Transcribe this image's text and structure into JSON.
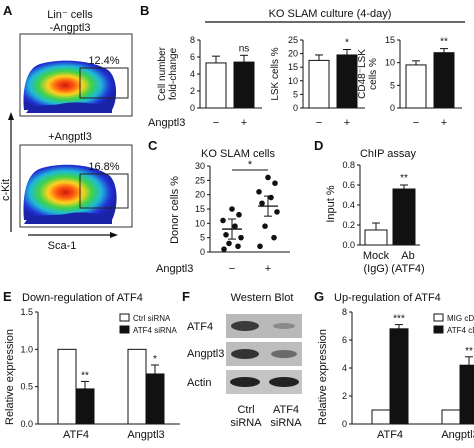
{
  "panel_letters": {
    "a": "A",
    "b": "B",
    "c": "C",
    "d": "D",
    "e": "E",
    "f": "F",
    "g": "G"
  },
  "colors": {
    "black_bar": "#111111",
    "white_bar": "#ffffff",
    "flow_outer": "#2233d6",
    "flow_mid": "#22c05a",
    "flow_inner": "#ffd21f",
    "flow_core": "#e8241a"
  },
  "panel_a": {
    "top_title_line1": "Lin⁻ cells",
    "top_title_line2": "-Angptl3",
    "top_percent": "12.4%",
    "bottom_title": "+Angptl3",
    "bottom_percent": "16.8%",
    "y_axis": "c-Kit",
    "x_axis": "Sca-1"
  },
  "panel_b": {
    "header": "KO SLAM culture (4-day)",
    "row_label": "Angptl3",
    "cond_minus": "−",
    "cond_plus": "+",
    "charts": [
      {
        "ylabel_line1": "Cell number",
        "ylabel_line2": "fold-change",
        "ticks": [
          "0",
          "2",
          "4",
          "6",
          "8"
        ],
        "significance": "ns"
      },
      {
        "ylabel_line1": "LSK cells %",
        "ticks": [
          "0",
          "5",
          "10",
          "15",
          "20",
          "25"
        ],
        "significance": "*"
      },
      {
        "ylabel_line1": "CD48⁻LSK",
        "ylabel_line2": "cells %",
        "ticks": [
          "0",
          "5",
          "10",
          "15"
        ],
        "significance": "**"
      }
    ]
  },
  "panel_c": {
    "title": "KO SLAM cells",
    "ylabel": "Donor cells %",
    "ticks": [
      "0",
      "5",
      "10",
      "15",
      "20",
      "25",
      "30"
    ],
    "row_label": "Angptl3",
    "cond_minus": "−",
    "cond_plus": "+",
    "significance": "*"
  },
  "panel_d": {
    "title": "ChIP assay",
    "ylabel": "Input %",
    "ticks": [
      "0.0",
      "0.2",
      "0.4",
      "0.6",
      "0.8"
    ],
    "cat1_line1": "Mock",
    "cat1_line2": "(IgG)",
    "cat2_line1": "Ab",
    "cat2_line2": "(ATF4)",
    "significance": "**"
  },
  "panel_e": {
    "title": "Down-regulation of ATF4",
    "ylabel": "Relative expression",
    "ticks": [
      "0.0",
      "0.5",
      "1.0",
      "1.5"
    ],
    "legend_white": "Ctrl siRNA",
    "legend_black": "ATF4 siRNA",
    "categories": [
      "ATF4",
      "Angptl3"
    ],
    "sig": [
      "**",
      "*"
    ]
  },
  "panel_f": {
    "title": "Western Blot",
    "rows": [
      "ATF4",
      "Angptl3",
      "Actin"
    ],
    "col1_line1": "Ctrl",
    "col1_line2": "siRNA",
    "col2_line1": "ATF4",
    "col2_line2": "siRNA"
  },
  "panel_g": {
    "title": "Up-regulation of ATF4",
    "ylabel": "Relative expression",
    "ticks": [
      "0",
      "2",
      "4",
      "6",
      "8"
    ],
    "legend_white": "MIG cDNA",
    "legend_black": "ATF4 cDNA",
    "categories": [
      "ATF4",
      "Angptl3"
    ],
    "sig": [
      "***",
      "**"
    ]
  },
  "chart_data": [
    {
      "type": "bar",
      "categories": [
        "−",
        "+"
      ],
      "values": [
        5.3,
        5.4
      ],
      "ylim": [
        0,
        8
      ],
      "ylabel": "Cell number fold-change",
      "xlabel": "Angptl3"
    },
    {
      "type": "bar",
      "categories": [
        "−",
        "+"
      ],
      "values": [
        17.5,
        19.5
      ],
      "ylim": [
        0,
        25
      ],
      "ylabel": "LSK cells %",
      "xlabel": "Angptl3"
    },
    {
      "type": "bar",
      "categories": [
        "−",
        "+"
      ],
      "values": [
        9.5,
        12.2
      ],
      "ylim": [
        0,
        15
      ],
      "ylabel": "CD48⁻LSK cells %",
      "xlabel": "Angptl3"
    },
    {
      "type": "scatter",
      "title": "KO SLAM cells",
      "ylabel": "Donor cells %",
      "xlabel": "Angptl3",
      "ylim": [
        0,
        30
      ],
      "series": [
        {
          "values": [
            1,
            2,
            3,
            5,
            6,
            9,
            11,
            13,
            15
          ]
        },
        {
          "values": [
            2,
            5,
            9,
            14,
            17,
            19,
            21,
            24,
            26
          ]
        }
      ],
      "means": [
        8,
        16
      ]
    },
    {
      "type": "bar",
      "title": "ChIP assay",
      "categories": [
        "Mock (IgG)",
        "Ab (ATF4)"
      ],
      "values": [
        0.15,
        0.56
      ],
      "ylim": [
        0,
        0.8
      ],
      "ylabel": "Input %"
    },
    {
      "type": "bar",
      "title": "Down-regulation of ATF4",
      "categories": [
        "ATF4",
        "Angptl3"
      ],
      "ylim": [
        0,
        1.5
      ],
      "ylabel": "Relative expression",
      "series": [
        {
          "name": "Ctrl siRNA",
          "values": [
            1.0,
            1.0
          ]
        },
        {
          "name": "ATF4 siRNA",
          "values": [
            0.47,
            0.67
          ]
        }
      ]
    },
    {
      "type": "bar",
      "title": "Up-regulation of ATF4",
      "categories": [
        "ATF4",
        "Angptl3"
      ],
      "ylim": [
        0,
        8
      ],
      "ylabel": "Relative expression",
      "series": [
        {
          "name": "MIG cDNA",
          "values": [
            1.0,
            1.0
          ]
        },
        {
          "name": "ATF4 cDNA",
          "values": [
            6.8,
            4.2
          ]
        }
      ]
    }
  ]
}
